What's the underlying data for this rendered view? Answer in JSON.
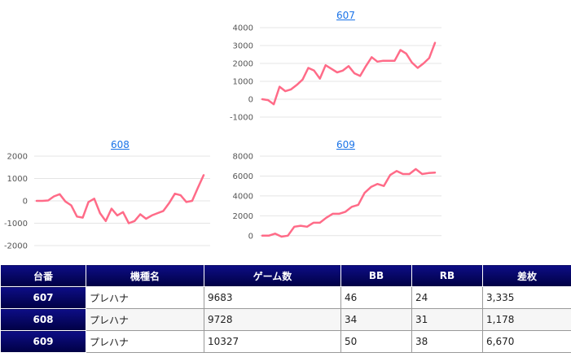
{
  "chart_data": [
    {
      "type": "line",
      "title": "607",
      "ylim": [
        -1000,
        4000
      ],
      "yticks": [
        -1000,
        0,
        1000,
        2000,
        3000,
        4000
      ],
      "grid": true,
      "series": [
        {
          "values": [
            0,
            -50,
            -280,
            700,
            450,
            550,
            800,
            1100,
            1750,
            1600,
            1150,
            1900,
            1700,
            1500,
            1600,
            1850,
            1450,
            1300,
            1850,
            2350,
            2100,
            2150,
            2150,
            2150,
            2750,
            2550,
            2050,
            1750,
            2000,
            2300,
            3150
          ]
        }
      ],
      "color": "#ff6b88"
    },
    {
      "type": "line",
      "title": "608",
      "ylim": [
        -2000,
        2000
      ],
      "yticks": [
        -2000,
        -1000,
        0,
        1000,
        2000
      ],
      "grid": true,
      "series": [
        {
          "values": [
            0,
            0,
            20,
            200,
            300,
            -30,
            -200,
            -700,
            -750,
            -50,
            100,
            -550,
            -900,
            -350,
            -650,
            -500,
            -1000,
            -900,
            -600,
            -800,
            -650,
            -550,
            -450,
            -100,
            320,
            250,
            -50,
            0,
            580,
            1150
          ]
        }
      ],
      "color": "#ff6b88"
    },
    {
      "type": "line",
      "title": "609",
      "ylim": [
        -1000,
        8000
      ],
      "yticks": [
        0,
        2000,
        4000,
        6000,
        8000
      ],
      "grid": true,
      "series": [
        {
          "values": [
            0,
            0,
            200,
            -100,
            0,
            900,
            1000,
            900,
            1300,
            1300,
            1800,
            2200,
            2200,
            2400,
            2900,
            3100,
            4300,
            4900,
            5200,
            5000,
            6100,
            6500,
            6200,
            6200,
            6700,
            6200,
            6300,
            6350
          ]
        }
      ],
      "color": "#ff6b88"
    }
  ],
  "table": {
    "headers": [
      "台番",
      "機種名",
      "ゲーム数",
      "BB",
      "RB",
      "差枚"
    ],
    "rows": [
      {
        "num": "607",
        "model": "プレハナ",
        "games": "9683",
        "bb": "46",
        "rb": "24",
        "diff": "3,335"
      },
      {
        "num": "608",
        "model": "プレハナ",
        "games": "9728",
        "bb": "34",
        "rb": "31",
        "diff": "1,178"
      },
      {
        "num": "609",
        "model": "プレハナ",
        "games": "10327",
        "bb": "50",
        "rb": "38",
        "diff": "6,670"
      }
    ]
  }
}
